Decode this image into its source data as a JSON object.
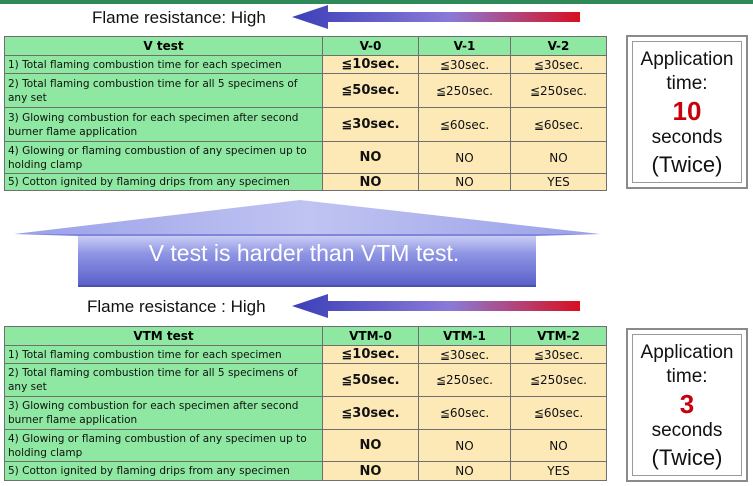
{
  "top": {
    "flame_label": "Flame resistance: High",
    "table": {
      "header": [
        "V test",
        "V-0",
        "V-1",
        "V-2"
      ],
      "rows": [
        {
          "desc": "1) Total flaming combustion time for each specimen",
          "vals": [
            "≦10sec.",
            "≦30sec.",
            "≦30sec."
          ]
        },
        {
          "desc": "2) Total flaming combustion time for all 5 specimens of any set",
          "vals": [
            "≦50sec.",
            "≦250sec.",
            "≦250sec."
          ]
        },
        {
          "desc": "3) Glowing combustion for each specimen after second burner flame application",
          "vals": [
            "≦30sec.",
            "≦60sec.",
            "≦60sec."
          ]
        },
        {
          "desc": "4) Glowing or flaming combustion of any specimen up to holding clamp",
          "vals": [
            "NO",
            "NO",
            "NO"
          ]
        },
        {
          "desc": "5) Cotton ignited by flaming drips from any specimen",
          "vals": [
            "NO",
            "NO",
            "YES"
          ]
        }
      ]
    },
    "app": {
      "line1": "Application",
      "line2": "time:",
      "number": "10",
      "line3": "seconds",
      "line4": "(Twice)"
    }
  },
  "banner_text": "V test is harder than VTM test.",
  "bottom": {
    "flame_label": "Flame resistance : High",
    "table": {
      "header": [
        "VTM test",
        "VTM-0",
        "VTM-1",
        "VTM-2"
      ],
      "rows": [
        {
          "desc": "1) Total flaming combustion time for each specimen",
          "vals": [
            "≦10sec.",
            "≦30sec.",
            "≦30sec."
          ]
        },
        {
          "desc": "2) Total flaming combustion time for all 5 specimens of any set",
          "vals": [
            "≦50sec.",
            "≦250sec.",
            "≦250sec."
          ]
        },
        {
          "desc": "3) Glowing combustion for each specimen after second burner flame application",
          "vals": [
            "≦30sec.",
            "≦60sec.",
            "≦60sec."
          ]
        },
        {
          "desc": "4) Glowing or flaming combustion of any specimen up to holding clamp",
          "vals": [
            "NO",
            "NO",
            "NO"
          ]
        },
        {
          "desc": "5) Cotton ignited by flaming drips from any specimen",
          "vals": [
            "NO",
            "NO",
            "YES"
          ]
        }
      ]
    },
    "app": {
      "line1": "Application",
      "line2": "time:",
      "number": "3",
      "line3": "seconds",
      "line4": "(Twice)"
    }
  },
  "colors": {
    "table_desc_bg": "#8ee8a2",
    "table_val_bg": "#fde9b6",
    "number_red": "#c8000a",
    "banner_blue": "#6a6fd6"
  }
}
